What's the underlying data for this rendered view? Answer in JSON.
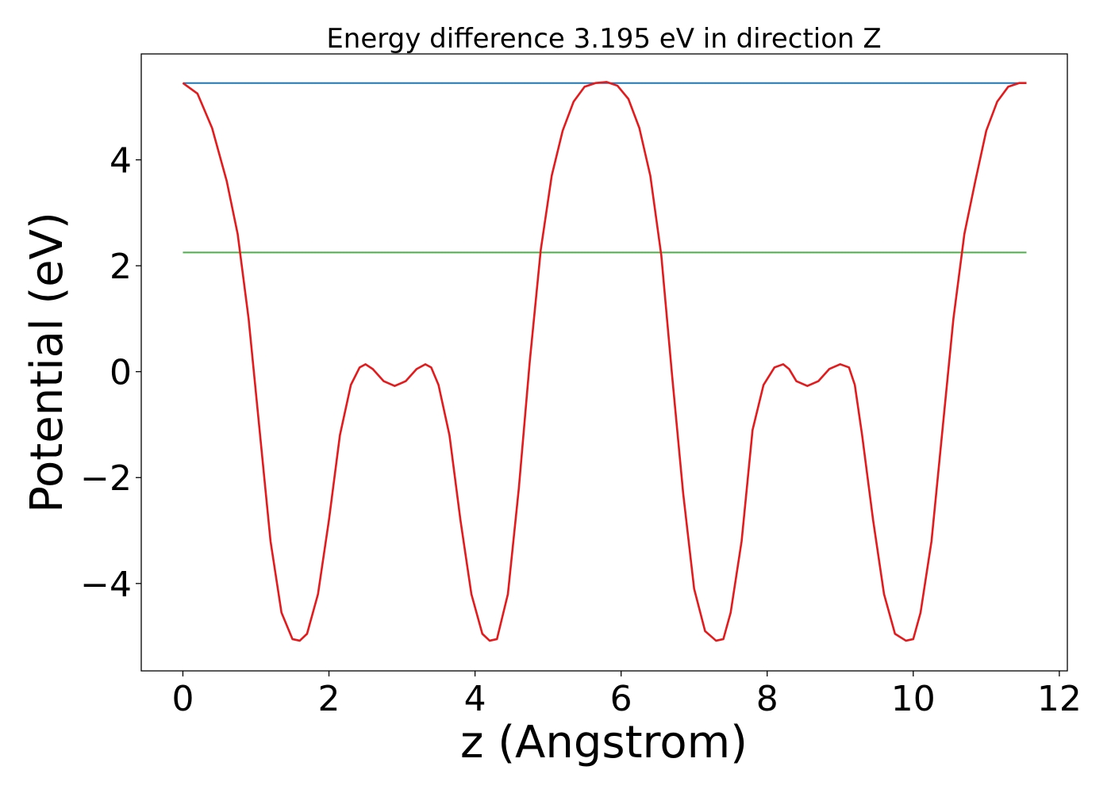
{
  "chart_data": {
    "type": "line",
    "title": "Energy difference 3.195 eV in direction Z",
    "xlabel": "z (Angstrom)",
    "ylabel": "Potential (eV)",
    "xlim": [
      -0.57,
      12.11
    ],
    "ylim": [
      -5.65,
      6.0
    ],
    "x_ticks": [
      0,
      2,
      4,
      6,
      8,
      10,
      12
    ],
    "x_tick_labels": [
      "0",
      "2",
      "4",
      "6",
      "8",
      "10",
      "12"
    ],
    "y_ticks": [
      -4,
      -2,
      0,
      2,
      4
    ],
    "y_tick_labels": [
      "−4",
      "−2",
      "0",
      "2",
      "4"
    ],
    "grid": false,
    "series": [
      {
        "color": "#e41a1c",
        "x": [
          0.0,
          0.2,
          0.4,
          0.6,
          0.75,
          0.9,
          1.05,
          1.2,
          1.35,
          1.5,
          1.6,
          1.7,
          1.85,
          2.0,
          2.15,
          2.3,
          2.42,
          2.5,
          2.6,
          2.75,
          2.9,
          3.05,
          3.2,
          3.32,
          3.4,
          3.5,
          3.65,
          3.8,
          3.95,
          4.1,
          4.2,
          4.3,
          4.45,
          4.6,
          4.75,
          4.9,
          5.05,
          5.2,
          5.35,
          5.5,
          5.65,
          5.8,
          5.95,
          6.1,
          6.25,
          6.4,
          6.55,
          6.7,
          6.85,
          7.0,
          7.15,
          7.3,
          7.4,
          7.5,
          7.65,
          7.8,
          7.95,
          8.1,
          8.22,
          8.3,
          8.4,
          8.55,
          8.7,
          8.85,
          9.0,
          9.12,
          9.2,
          9.3,
          9.45,
          9.6,
          9.75,
          9.9,
          10.0,
          10.1,
          10.25,
          10.4,
          10.55,
          10.7,
          10.85,
          11.0,
          11.15,
          11.3,
          11.45,
          11.55
        ],
        "y": [
          5.45,
          5.25,
          4.6,
          3.6,
          2.6,
          1.0,
          -1.1,
          -3.2,
          -4.55,
          -5.05,
          -5.08,
          -4.95,
          -4.2,
          -2.8,
          -1.2,
          -0.25,
          0.08,
          0.14,
          0.05,
          -0.18,
          -0.27,
          -0.18,
          0.05,
          0.14,
          0.08,
          -0.25,
          -1.2,
          -2.8,
          -4.2,
          -4.95,
          -5.08,
          -5.05,
          -4.2,
          -2.2,
          0.2,
          2.3,
          3.7,
          4.55,
          5.1,
          5.38,
          5.45,
          5.47,
          5.4,
          5.15,
          4.6,
          3.7,
          2.2,
          -0.1,
          -2.3,
          -4.1,
          -4.9,
          -5.08,
          -5.05,
          -4.55,
          -3.2,
          -1.1,
          -0.25,
          0.08,
          0.14,
          0.05,
          -0.18,
          -0.27,
          -0.18,
          0.05,
          0.14,
          0.08,
          -0.25,
          -1.2,
          -2.8,
          -4.2,
          -4.95,
          -5.08,
          -5.05,
          -4.55,
          -3.2,
          -1.1,
          1.0,
          2.6,
          3.6,
          4.55,
          5.1,
          5.38,
          5.45,
          5.45
        ]
      },
      {
        "color": "#1f77b4",
        "x": [
          0.0,
          11.55
        ],
        "y": [
          5.45,
          5.45
        ]
      },
      {
        "color": "#4daf4a",
        "x": [
          0.0,
          11.55
        ],
        "y": [
          2.25,
          2.25
        ]
      }
    ]
  }
}
